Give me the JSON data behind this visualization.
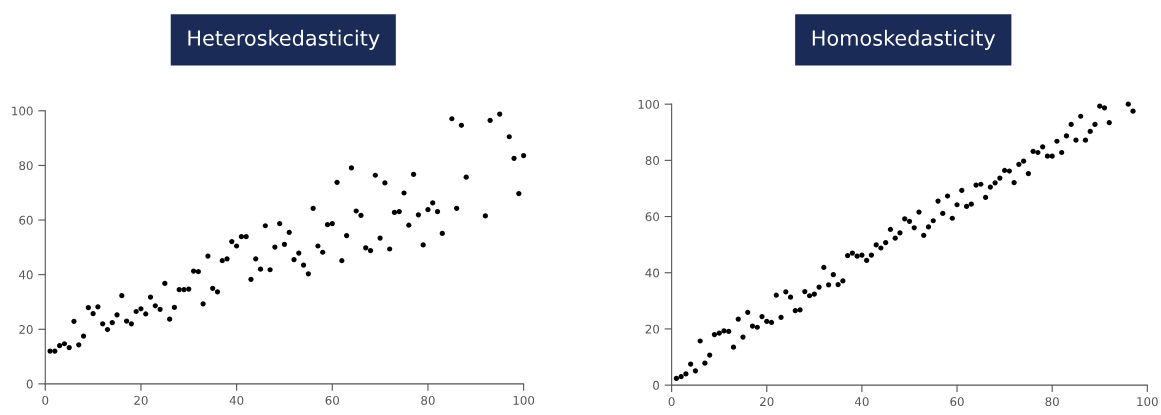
{
  "chart_data": [
    {
      "type": "scatter",
      "title": "Heteroskedasticity",
      "marker": "circle",
      "grid": false,
      "x": [
        1,
        2,
        3,
        4,
        5,
        6,
        7,
        8,
        9,
        10,
        11,
        12,
        13,
        14,
        15,
        16,
        17,
        18,
        19,
        20,
        21,
        22,
        23,
        24,
        25,
        26,
        27,
        28,
        29,
        30,
        31,
        32,
        33,
        34,
        35,
        36,
        37,
        38,
        39,
        40,
        41,
        42,
        43,
        44,
        45,
        46,
        47,
        48,
        49,
        50,
        51,
        52,
        53,
        54,
        55,
        56,
        57,
        58,
        59,
        60,
        61,
        62,
        63,
        64,
        65,
        66,
        67,
        68,
        69,
        70,
        71,
        72,
        73,
        74,
        75,
        76,
        77,
        78,
        79,
        80,
        81,
        82,
        83,
        85,
        86,
        87,
        88,
        92,
        93,
        95,
        97,
        98,
        99,
        100
      ],
      "series": [
        {
          "color": "#000000",
          "values": [
            12,
            12,
            14,
            14.7,
            13.3,
            22.9,
            14.3,
            17.5,
            27.9,
            25.7,
            28.2,
            22,
            19.9,
            22.4,
            25.3,
            32.3,
            23,
            22,
            26.5,
            27.5,
            25.6,
            31.8,
            28.6,
            27.3,
            36.8,
            23.7,
            28,
            34.5,
            34.5,
            34.7,
            41.3,
            41.1,
            29.3,
            46.8,
            35,
            33.7,
            45.1,
            45.8,
            52.1,
            50.5,
            53.9,
            53.9,
            38.3,
            45.8,
            42,
            57.9,
            41.8,
            50.1,
            58.7,
            51.1,
            55.5,
            45.5,
            47.9,
            43.5,
            40.3,
            64.3,
            50.5,
            48.2,
            58.3,
            58.7,
            73.8,
            45.1,
            54.3,
            79.1,
            63.3,
            61.7,
            49.8,
            48.8,
            76.4,
            53.4,
            73.6,
            49.4,
            62.8,
            63.1,
            69.9,
            58.1,
            76.7,
            61.9,
            50.9,
            63.8,
            66.3,
            63.1,
            55.1,
            97.1,
            64.3,
            94.7,
            75.7,
            61.5,
            96.5,
            98.8,
            90.5,
            82.6,
            69.7,
            83.6
          ]
        }
      ],
      "xlim": [
        0,
        100
      ],
      "ylim": [
        0,
        100
      ],
      "xticks": [
        0,
        20,
        40,
        60,
        80,
        100
      ],
      "yticks": [
        0,
        20,
        40,
        60,
        80,
        100
      ]
    },
    {
      "type": "scatter",
      "title": "Homoskedasticity",
      "marker": "circle",
      "grid": false,
      "x": [
        1,
        2,
        3,
        4,
        5,
        6,
        7,
        8,
        9,
        10,
        11,
        12,
        13,
        14,
        15,
        16,
        17,
        18,
        19,
        20,
        21,
        22,
        23,
        24,
        25,
        26,
        27,
        28,
        29,
        30,
        31,
        32,
        33,
        34,
        35,
        36,
        37,
        38,
        39,
        40,
        41,
        42,
        43,
        44,
        45,
        46,
        47,
        48,
        49,
        50,
        51,
        52,
        53,
        54,
        55,
        56,
        57,
        58,
        59,
        60,
        61,
        62,
        63,
        64,
        65,
        66,
        67,
        68,
        69,
        70,
        71,
        72,
        73,
        74,
        75,
        76,
        77,
        78,
        79,
        80,
        81,
        82,
        83,
        84,
        85,
        86,
        87,
        88,
        89,
        90,
        91,
        92,
        96,
        97
      ],
      "series": [
        {
          "color": "#000000",
          "values": [
            2.4,
            3,
            4,
            7.5,
            5.1,
            15.7,
            7.8,
            10.7,
            18,
            18.5,
            19.3,
            19.1,
            13.5,
            23.5,
            17.1,
            25.9,
            21,
            20.6,
            24.4,
            22.7,
            22.3,
            32,
            24.1,
            33.2,
            31.3,
            26.5,
            26.8,
            33.3,
            31.8,
            32.4,
            34.9,
            41.9,
            35.7,
            39.3,
            35.8,
            37.1,
            46.1,
            47,
            45.9,
            46.3,
            44.4,
            46.3,
            49.9,
            48.8,
            50.7,
            55.4,
            52.3,
            54.2,
            59.2,
            58.3,
            56,
            61.6,
            53.3,
            56.3,
            58.5,
            65.5,
            61.1,
            67.3,
            59.4,
            64.2,
            69.3,
            63.6,
            64.4,
            71.2,
            71.5,
            66.8,
            70.5,
            72,
            73.7,
            76.4,
            76.2,
            72.1,
            78.6,
            79.7,
            75.3,
            83.2,
            82.8,
            84.8,
            81.5,
            81.5,
            86.8,
            82.8,
            88.7,
            92.8,
            87.2,
            95.7,
            87.2,
            90.3,
            92.8,
            99.3,
            98.7,
            93.4,
            100,
            97.5
          ]
        }
      ],
      "xlim": [
        0,
        100
      ],
      "ylim": [
        0,
        100
      ],
      "xticks": [
        0,
        20,
        40,
        60,
        80,
        100
      ],
      "yticks": [
        0,
        20,
        40,
        60,
        80,
        100
      ]
    }
  ]
}
